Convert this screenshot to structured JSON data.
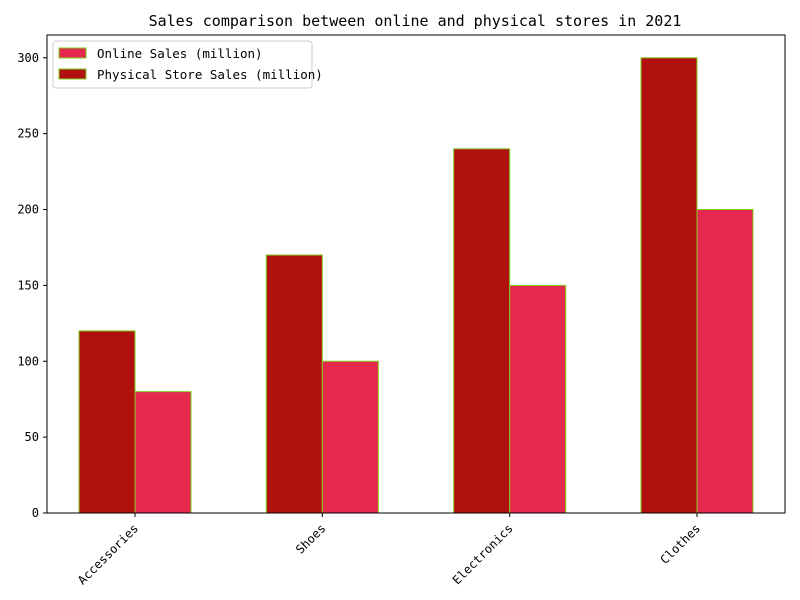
{
  "chart_data": {
    "type": "bar",
    "title": "Sales comparison between online and physical stores in 2021",
    "xlabel": "",
    "ylabel": "",
    "categories": [
      "Accessories",
      "Shoes",
      "Electronics",
      "Clothes"
    ],
    "series": [
      {
        "name": "Online Sales (million)",
        "values": [
          80,
          100,
          150,
          200
        ],
        "color": "#e5294e"
      },
      {
        "name": "Physical Store Sales (million)",
        "values": [
          120,
          170,
          240,
          300
        ],
        "color": "#b1110e"
      }
    ],
    "bar_edge_color": "#7fd11a",
    "ylim": [
      0,
      315
    ],
    "yticks": [
      0,
      50,
      100,
      150,
      200,
      250,
      300
    ],
    "grid": false,
    "legend_position": "top-left",
    "xtick_rotation_deg": 45
  }
}
